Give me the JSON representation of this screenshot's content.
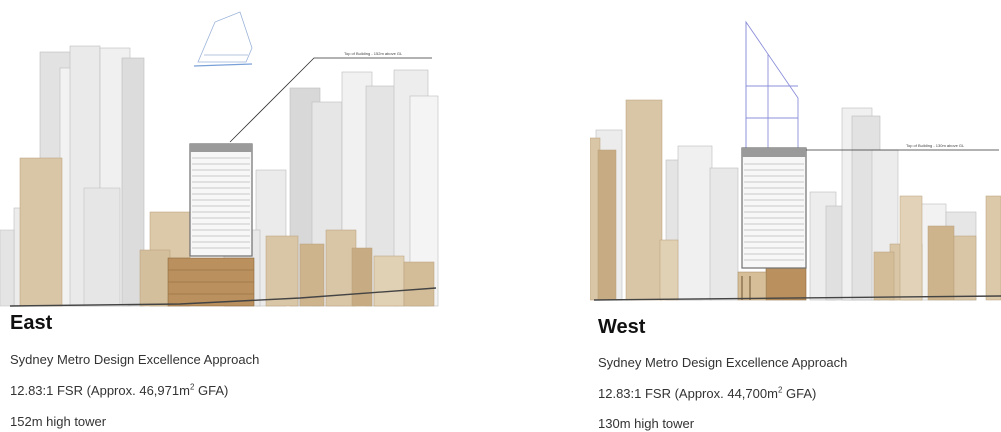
{
  "panels": [
    {
      "heading": "East",
      "annotation": "Top of Building - 152m above GL",
      "line1": "Sydney Metro Design Excellence Approach",
      "fsr_prefix": "12.83:1 FSR (Approx. 46,971m",
      "fsr_sup": "2",
      "fsr_suffix": " GFA)",
      "line3": "152m high tower"
    },
    {
      "heading": "West",
      "annotation": "Top of Building - 130m above GL",
      "line1": "Sydney Metro Design Excellence Approach",
      "fsr_prefix": "12.83:1 FSR (Approx. 44,700m",
      "fsr_sup": "2",
      "fsr_suffix": " GFA)",
      "line3": "130m high tower"
    }
  ],
  "colors": {
    "tower_light": "#e9e9e9",
    "tower_mid": "#d6d6d6",
    "sandstone": "#d9c6a6",
    "sandstone_dark": "#c7ab82",
    "proposed_frame": "#8a8a8a",
    "podium_brick": "#b9905e",
    "envelope_blue": "#8c8fd9",
    "ground_line": "#444444"
  }
}
